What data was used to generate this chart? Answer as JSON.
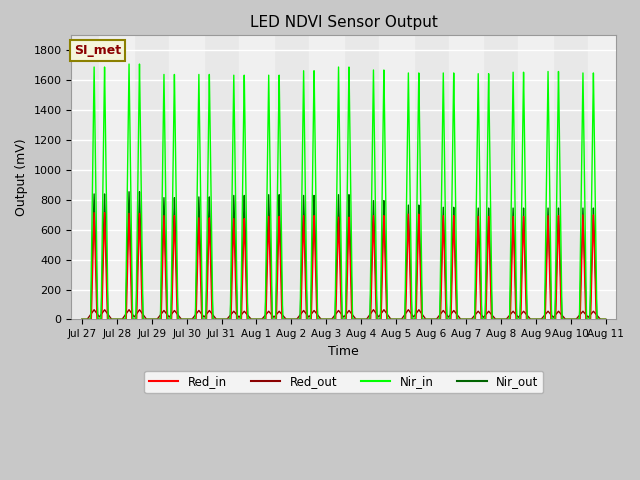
{
  "title": "LED NDVI Sensor Output",
  "xlabel": "Time",
  "ylabel": "Output (mV)",
  "ylim": [
    0,
    1900
  ],
  "yticks": [
    0,
    200,
    400,
    600,
    800,
    1000,
    1200,
    1400,
    1600,
    1800
  ],
  "num_cycles": 15,
  "red_in_color": "#ff0000",
  "red_out_color": "#8b0000",
  "nir_in_color": "#00ff00",
  "nir_out_color": "#006400",
  "fig_bg_color": "#c8c8c8",
  "plot_bg_color": "#e8e8e8",
  "stripe_color": "#f0f0f0",
  "annotation_text": "SI_met",
  "annotation_bg": "#f5f5dc",
  "annotation_border": "#8b8000",
  "annotation_text_color": "#8b0000",
  "tick_labels": [
    "Jul 27",
    "Jul 28",
    "Jul 29",
    "Jul 30",
    "Jul 31",
    "Aug 1",
    "Aug 2",
    "Aug 3",
    "Aug 4",
    "Aug 5",
    "Aug 6",
    "Aug 7",
    "Aug 8",
    "Aug 9",
    "Aug 10",
    "Aug 11"
  ],
  "nir_in_peaks": [
    1700,
    1720,
    1650,
    1650,
    1645,
    1645,
    1675,
    1700,
    1680,
    1660,
    1660,
    1655,
    1665,
    1670,
    1660
  ],
  "nir_out_peaks": [
    845,
    860,
    820,
    825,
    835,
    840,
    835,
    840,
    800,
    770,
    755,
    750,
    750,
    750,
    750
  ],
  "red_in_peaks": [
    720,
    715,
    700,
    685,
    680,
    695,
    700,
    690,
    700,
    710,
    700,
    695,
    695,
    700,
    705
  ],
  "red_out_peaks": [
    65,
    65,
    60,
    60,
    55,
    55,
    60,
    60,
    65,
    65,
    60,
    55,
    55,
    55,
    55
  ]
}
